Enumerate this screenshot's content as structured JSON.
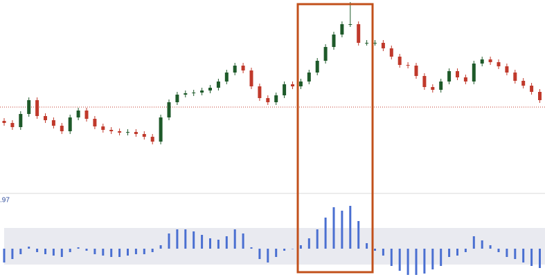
{
  "chart_data": [
    {
      "type": "candlestick",
      "ylim": [
        20,
        300
      ],
      "reference_line": 145,
      "up_color": "#1e5a2a",
      "down_color": "#c0392b",
      "reference_color": "#c0392b",
      "open": [
        125,
        122,
        116,
        135,
        155,
        132,
        126,
        118,
        110,
        130,
        140,
        128,
        117,
        112,
        110,
        108,
        109,
        106,
        102,
        95,
        130,
        152,
        163,
        165,
        166,
        169,
        173,
        182,
        195,
        205,
        198,
        175,
        158,
        152,
        162,
        178,
        175,
        182,
        195,
        212,
        232,
        250,
        265,
        265,
        238,
        238,
        238,
        230,
        218,
        206,
        205,
        190,
        174,
        170,
        182,
        197,
        188,
        182,
        208,
        214,
        210,
        204,
        195,
        183,
        176,
        167
      ],
      "high": [
        129,
        126,
        139,
        159,
        159,
        136,
        130,
        122,
        134,
        144,
        144,
        132,
        121,
        116,
        114,
        113,
        113,
        110,
        106,
        134,
        156,
        167,
        169,
        170,
        173,
        177,
        186,
        199,
        209,
        209,
        202,
        179,
        162,
        166,
        182,
        182,
        186,
        199,
        216,
        236,
        254,
        269,
        297,
        269,
        242,
        242,
        242,
        234,
        222,
        210,
        209,
        194,
        178,
        186,
        201,
        201,
        192,
        212,
        218,
        218,
        214,
        208,
        199,
        187,
        180,
        171
      ],
      "low": [
        118,
        112,
        112,
        131,
        128,
        122,
        114,
        106,
        106,
        126,
        124,
        113,
        108,
        106,
        104,
        104,
        102,
        98,
        91,
        91,
        126,
        148,
        159,
        161,
        162,
        165,
        169,
        178,
        191,
        194,
        171,
        154,
        148,
        148,
        158,
        171,
        171,
        178,
        191,
        208,
        228,
        246,
        261,
        234,
        234,
        234,
        226,
        214,
        202,
        201,
        186,
        170,
        166,
        166,
        178,
        184,
        178,
        178,
        204,
        206,
        200,
        191,
        179,
        172,
        163,
        151
      ],
      "close": [
        122,
        116,
        135,
        155,
        132,
        126,
        118,
        110,
        130,
        140,
        128,
        117,
        112,
        110,
        108,
        109,
        106,
        102,
        95,
        130,
        152,
        163,
        165,
        166,
        169,
        173,
        182,
        195,
        205,
        198,
        175,
        158,
        152,
        162,
        178,
        175,
        182,
        195,
        212,
        232,
        250,
        265,
        265,
        238,
        238,
        238,
        230,
        218,
        206,
        205,
        190,
        174,
        170,
        182,
        197,
        188,
        182,
        208,
        214,
        210,
        204,
        195,
        183,
        176,
        167,
        155
      ]
    },
    {
      "type": "bar",
      "label": ".97",
      "ylim": [
        -40,
        70
      ],
      "band": [
        -23,
        30
      ],
      "color": "#4a6fd1",
      "band_color": "#e9eaf0",
      "values": [
        -20,
        -15,
        -8,
        3,
        -5,
        -8,
        -10,
        -12,
        -5,
        2,
        -3,
        -8,
        -10,
        -12,
        -12,
        -10,
        -8,
        -8,
        -5,
        5,
        22,
        28,
        28,
        25,
        20,
        15,
        13,
        18,
        28,
        22,
        2,
        -15,
        -20,
        -12,
        -3,
        0,
        5,
        15,
        28,
        45,
        60,
        55,
        62,
        40,
        8,
        -3,
        -10,
        -25,
        -32,
        -38,
        -38,
        -36,
        -30,
        -25,
        -12,
        -10,
        -5,
        18,
        12,
        5,
        -5,
        -12,
        -15,
        -20,
        -25,
        -28
      ]
    }
  ]
}
